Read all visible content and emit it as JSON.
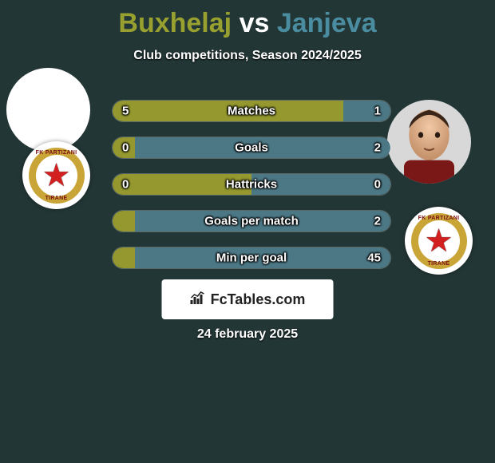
{
  "colors": {
    "background": "#233636",
    "title_p1": "#98a030",
    "title_vs": "#ffffff",
    "title_p2": "#4a8ca0",
    "bar_left": "#94982e",
    "bar_right": "#4c7886",
    "badge_ring": "#c9a437",
    "star": "#d22020"
  },
  "title": {
    "player1": "Buxhelaj",
    "vs": "vs",
    "player2": "Janjeva"
  },
  "subtitle": "Club competitions, Season 2024/2025",
  "bars": [
    {
      "label": "Matches",
      "left": "5",
      "right": "1",
      "left_pct": 83,
      "right_pct": 17
    },
    {
      "label": "Goals",
      "left": "0",
      "right": "2",
      "left_pct": 8,
      "right_pct": 92
    },
    {
      "label": "Hattricks",
      "left": "0",
      "right": "0",
      "left_pct": 50,
      "right_pct": 50
    },
    {
      "label": "Goals per match",
      "left": "",
      "right": "2",
      "left_pct": 8,
      "right_pct": 92
    },
    {
      "label": "Min per goal",
      "left": "",
      "right": "45",
      "left_pct": 8,
      "right_pct": 92
    }
  ],
  "badge": {
    "top_text": "FK PARTIZANI",
    "bottom_text": "TIRANE"
  },
  "watermark": "FcTables.com",
  "date": "24 february 2025"
}
